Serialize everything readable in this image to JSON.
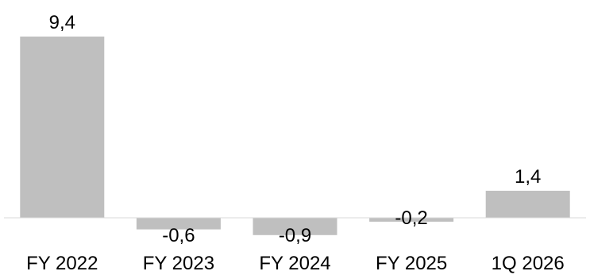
{
  "chart_data": {
    "type": "bar",
    "categories": [
      "FY 2022",
      "FY 2023",
      "FY 2024",
      "FY 2025",
      "1Q 2026"
    ],
    "values": [
      9.4,
      -0.6,
      -0.9,
      -0.2,
      1.4
    ],
    "value_labels": [
      "9,4",
      "-0,6",
      "-0,9",
      "-0,2",
      "1,4"
    ],
    "title": "",
    "xlabel": "",
    "ylabel": "",
    "ylim": [
      -1.0,
      9.4
    ],
    "grid": false,
    "legend": "none",
    "bar_color": "#bfbfbf"
  }
}
